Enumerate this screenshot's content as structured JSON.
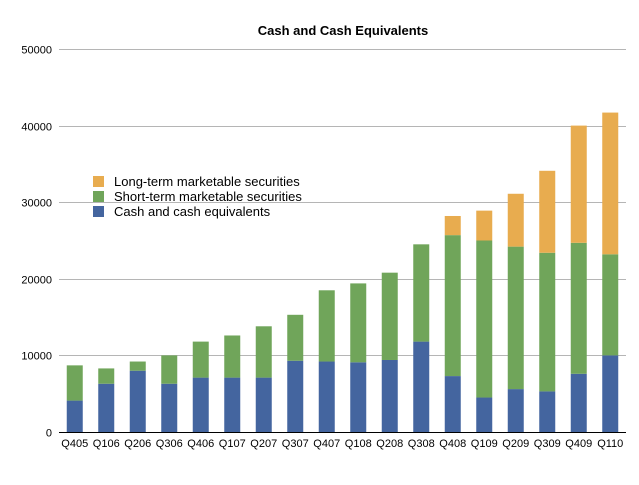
{
  "chart_data": {
    "type": "bar",
    "stacked": true,
    "title": "Cash and Cash Equivalents",
    "xlabel": "",
    "ylabel": "",
    "ylim": [
      0,
      50000
    ],
    "yticks": [
      0,
      10000,
      20000,
      30000,
      40000,
      50000
    ],
    "grid": true,
    "legend_position": "left",
    "categories": [
      "Q405",
      "Q106",
      "Q206",
      "Q306",
      "Q406",
      "Q107",
      "Q207",
      "Q307",
      "Q407",
      "Q108",
      "Q208",
      "Q308",
      "Q408",
      "Q109",
      "Q209",
      "Q309",
      "Q409",
      "Q110"
    ],
    "series": [
      {
        "name": "Cash and cash equivalents",
        "color": "#44659f",
        "values": [
          4100,
          6300,
          8000,
          6300,
          7100,
          7100,
          7100,
          9300,
          9200,
          9100,
          9400,
          11800,
          7300,
          4500,
          5600,
          5300,
          7600,
          10000
        ]
      },
      {
        "name": "Short-term marketable securities",
        "color": "#70a55a",
        "values": [
          4600,
          2000,
          1200,
          3700,
          4700,
          5500,
          6700,
          6000,
          9300,
          10300,
          11400,
          12700,
          18400,
          20500,
          18600,
          18100,
          17100,
          13200
        ]
      },
      {
        "name": "Long-term marketable securities",
        "color": "#e8ac4f",
        "values": [
          0,
          0,
          0,
          0,
          0,
          0,
          0,
          0,
          0,
          0,
          0,
          0,
          2500,
          3900,
          6900,
          10700,
          15300,
          18500
        ]
      }
    ]
  }
}
